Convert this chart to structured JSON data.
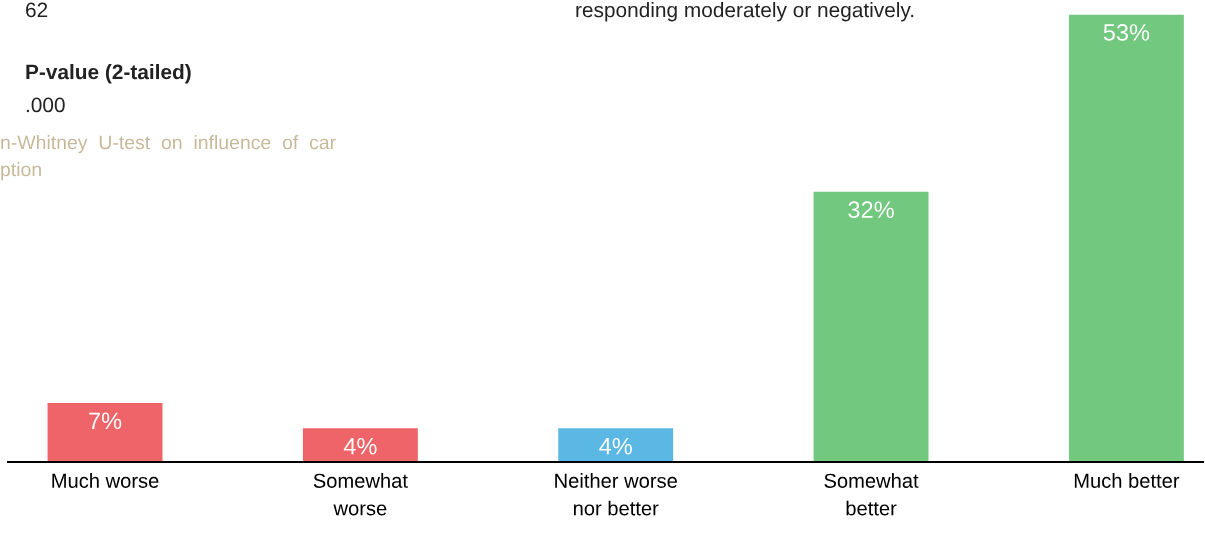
{
  "chart_data": {
    "type": "bar",
    "categories": [
      "Much worse",
      "Somewhat\nworse",
      "Neither worse\nnor better",
      "Somewhat\nbetter",
      "Much better"
    ],
    "values": [
      7,
      4,
      4,
      32,
      53
    ],
    "colors": [
      "#ef6468",
      "#ef6468",
      "#5bb8e4",
      "#72c87e",
      "#72c87e"
    ],
    "value_labels": [
      "7%",
      "4%",
      "4%",
      "32%",
      "53%"
    ],
    "annotations": [
      "62",
      "responding moderately or negatively.",
      "P-value (2-tailed)",
      ".000",
      "n-Whitney  U-test  on  influence  of  car",
      "ption"
    ]
  }
}
